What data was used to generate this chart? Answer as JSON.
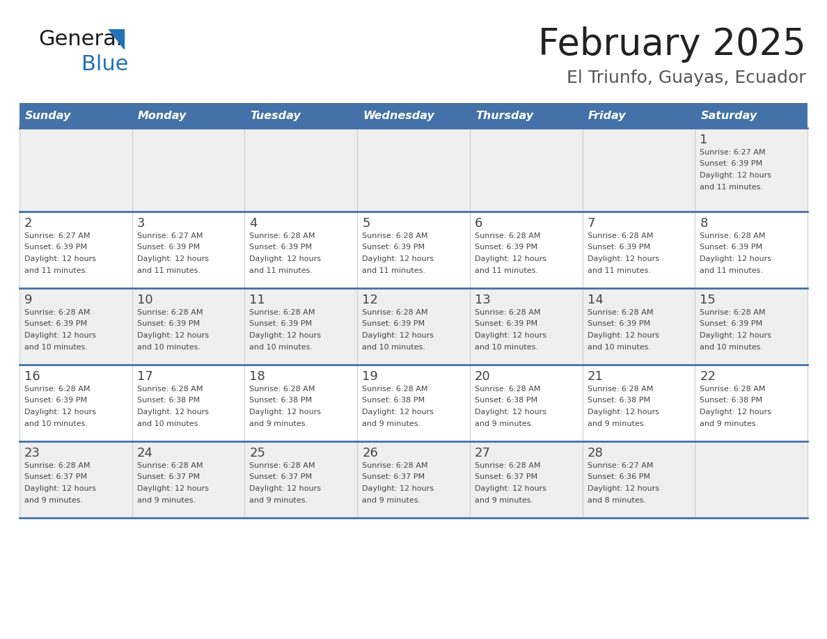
{
  "title": "February 2025",
  "subtitle": "El Triunfo, Guayas, Ecuador",
  "days_of_week": [
    "Sunday",
    "Monday",
    "Tuesday",
    "Wednesday",
    "Thursday",
    "Friday",
    "Saturday"
  ],
  "header_bg": "#4472a8",
  "header_text": "#ffffff",
  "row_bg_even": "#efefef",
  "row_bg_odd": "#ffffff",
  "divider_color": "#4472a8",
  "text_color": "#444444",
  "title_color": "#222222",
  "subtitle_color": "#555555",
  "logo_general_color": "#1a1a1a",
  "logo_blue_color": "#2272b5",
  "logo_triangle_color": "#2272b5",
  "calendar_data": [
    [
      null,
      null,
      null,
      null,
      null,
      null,
      {
        "day": 1,
        "sunrise": "6:27 AM",
        "sunset": "6:39 PM",
        "daylight": "12 hours and 11 minutes."
      }
    ],
    [
      {
        "day": 2,
        "sunrise": "6:27 AM",
        "sunset": "6:39 PM",
        "daylight": "12 hours and 11 minutes."
      },
      {
        "day": 3,
        "sunrise": "6:27 AM",
        "sunset": "6:39 PM",
        "daylight": "12 hours and 11 minutes."
      },
      {
        "day": 4,
        "sunrise": "6:28 AM",
        "sunset": "6:39 PM",
        "daylight": "12 hours and 11 minutes."
      },
      {
        "day": 5,
        "sunrise": "6:28 AM",
        "sunset": "6:39 PM",
        "daylight": "12 hours and 11 minutes."
      },
      {
        "day": 6,
        "sunrise": "6:28 AM",
        "sunset": "6:39 PM",
        "daylight": "12 hours and 11 minutes."
      },
      {
        "day": 7,
        "sunrise": "6:28 AM",
        "sunset": "6:39 PM",
        "daylight": "12 hours and 11 minutes."
      },
      {
        "day": 8,
        "sunrise": "6:28 AM",
        "sunset": "6:39 PM",
        "daylight": "12 hours and 11 minutes."
      }
    ],
    [
      {
        "day": 9,
        "sunrise": "6:28 AM",
        "sunset": "6:39 PM",
        "daylight": "12 hours and 10 minutes."
      },
      {
        "day": 10,
        "sunrise": "6:28 AM",
        "sunset": "6:39 PM",
        "daylight": "12 hours and 10 minutes."
      },
      {
        "day": 11,
        "sunrise": "6:28 AM",
        "sunset": "6:39 PM",
        "daylight": "12 hours and 10 minutes."
      },
      {
        "day": 12,
        "sunrise": "6:28 AM",
        "sunset": "6:39 PM",
        "daylight": "12 hours and 10 minutes."
      },
      {
        "day": 13,
        "sunrise": "6:28 AM",
        "sunset": "6:39 PM",
        "daylight": "12 hours and 10 minutes."
      },
      {
        "day": 14,
        "sunrise": "6:28 AM",
        "sunset": "6:39 PM",
        "daylight": "12 hours and 10 minutes."
      },
      {
        "day": 15,
        "sunrise": "6:28 AM",
        "sunset": "6:39 PM",
        "daylight": "12 hours and 10 minutes."
      }
    ],
    [
      {
        "day": 16,
        "sunrise": "6:28 AM",
        "sunset": "6:39 PM",
        "daylight": "12 hours and 10 minutes."
      },
      {
        "day": 17,
        "sunrise": "6:28 AM",
        "sunset": "6:38 PM",
        "daylight": "12 hours and 10 minutes."
      },
      {
        "day": 18,
        "sunrise": "6:28 AM",
        "sunset": "6:38 PM",
        "daylight": "12 hours and 9 minutes."
      },
      {
        "day": 19,
        "sunrise": "6:28 AM",
        "sunset": "6:38 PM",
        "daylight": "12 hours and 9 minutes."
      },
      {
        "day": 20,
        "sunrise": "6:28 AM",
        "sunset": "6:38 PM",
        "daylight": "12 hours and 9 minutes."
      },
      {
        "day": 21,
        "sunrise": "6:28 AM",
        "sunset": "6:38 PM",
        "daylight": "12 hours and 9 minutes."
      },
      {
        "day": 22,
        "sunrise": "6:28 AM",
        "sunset": "6:38 PM",
        "daylight": "12 hours and 9 minutes."
      }
    ],
    [
      {
        "day": 23,
        "sunrise": "6:28 AM",
        "sunset": "6:37 PM",
        "daylight": "12 hours and 9 minutes."
      },
      {
        "day": 24,
        "sunrise": "6:28 AM",
        "sunset": "6:37 PM",
        "daylight": "12 hours and 9 minutes."
      },
      {
        "day": 25,
        "sunrise": "6:28 AM",
        "sunset": "6:37 PM",
        "daylight": "12 hours and 9 minutes."
      },
      {
        "day": 26,
        "sunrise": "6:28 AM",
        "sunset": "6:37 PM",
        "daylight": "12 hours and 9 minutes."
      },
      {
        "day": 27,
        "sunrise": "6:28 AM",
        "sunset": "6:37 PM",
        "daylight": "12 hours and 9 minutes."
      },
      {
        "day": 28,
        "sunrise": "6:27 AM",
        "sunset": "6:36 PM",
        "daylight": "12 hours and 8 minutes."
      },
      null
    ]
  ]
}
